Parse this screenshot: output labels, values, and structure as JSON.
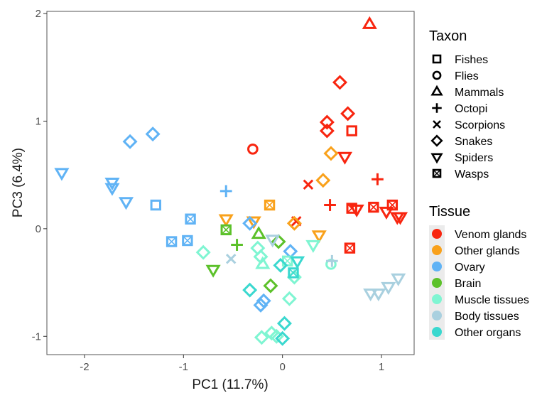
{
  "chart_data": {
    "type": "scatter",
    "xlabel": "PC1 (11.7%)",
    "ylabel": "PC3 (6.4%)",
    "xlim": [
      -2.38,
      1.33
    ],
    "ylim": [
      -1.17,
      2.02
    ],
    "xticks": [
      -2,
      -1,
      0,
      1
    ],
    "yticks": [
      -1,
      0,
      1,
      2
    ],
    "grid": false,
    "legend_placement": "right",
    "taxon_legend": {
      "title": "Taxon",
      "items": [
        {
          "name": "Fishes",
          "shape": "square"
        },
        {
          "name": "Flies",
          "shape": "circle"
        },
        {
          "name": "Mammals",
          "shape": "triangle"
        },
        {
          "name": "Octopi",
          "shape": "plus"
        },
        {
          "name": "Scorpions",
          "shape": "cross"
        },
        {
          "name": "Snakes",
          "shape": "diamond"
        },
        {
          "name": "Spiders",
          "shape": "triangle-down"
        },
        {
          "name": "Wasps",
          "shape": "square-box"
        }
      ]
    },
    "tissue_legend": {
      "title": "Tissue",
      "items": [
        {
          "name": "Venom glands",
          "color": "#f8250f"
        },
        {
          "name": "Other glands",
          "color": "#f9a11b"
        },
        {
          "name": "Ovary",
          "color": "#60b3f5"
        },
        {
          "name": "Brain",
          "color": "#5cc12a"
        },
        {
          "name": "Muscle tissues",
          "color": "#7ff5d2"
        },
        {
          "name": "Body tissues",
          "color": "#a9d0df"
        },
        {
          "name": "Other organs",
          "color": "#3ad8cf"
        }
      ]
    },
    "points": [
      {
        "x": 0.88,
        "y": 1.9,
        "taxon": "Mammals",
        "tissue": "Venom glands"
      },
      {
        "x": 0.58,
        "y": 1.36,
        "taxon": "Snakes",
        "tissue": "Venom glands"
      },
      {
        "x": 0.66,
        "y": 1.07,
        "taxon": "Snakes",
        "tissue": "Venom glands"
      },
      {
        "x": 0.45,
        "y": 0.99,
        "taxon": "Snakes",
        "tissue": "Venom glands"
      },
      {
        "x": 0.45,
        "y": 0.91,
        "taxon": "Snakes",
        "tissue": "Venom glands"
      },
      {
        "x": 0.7,
        "y": 0.91,
        "taxon": "Fishes",
        "tissue": "Venom glands"
      },
      {
        "x": -0.3,
        "y": 0.74,
        "taxon": "Flies",
        "tissue": "Venom glands"
      },
      {
        "x": 0.63,
        "y": 0.67,
        "taxon": "Spiders",
        "tissue": "Venom glands"
      },
      {
        "x": 0.96,
        "y": 0.46,
        "taxon": "Octopi",
        "tissue": "Venom glands"
      },
      {
        "x": 0.26,
        "y": 0.41,
        "taxon": "Scorpions",
        "tissue": "Venom glands"
      },
      {
        "x": 0.48,
        "y": 0.22,
        "taxon": "Octopi",
        "tissue": "Venom glands"
      },
      {
        "x": 0.7,
        "y": 0.19,
        "taxon": "Wasps",
        "tissue": "Venom glands"
      },
      {
        "x": 0.75,
        "y": 0.18,
        "taxon": "Spiders",
        "tissue": "Venom glands"
      },
      {
        "x": 0.92,
        "y": 0.2,
        "taxon": "Wasps",
        "tissue": "Venom glands"
      },
      {
        "x": 1.11,
        "y": 0.22,
        "taxon": "Wasps",
        "tissue": "Venom glands"
      },
      {
        "x": 1.05,
        "y": 0.16,
        "taxon": "Spiders",
        "tissue": "Venom glands"
      },
      {
        "x": 1.16,
        "y": 0.11,
        "taxon": "Spiders",
        "tissue": "Venom glands"
      },
      {
        "x": 1.19,
        "y": 0.11,
        "taxon": "Spiders",
        "tissue": "Venom glands"
      },
      {
        "x": 0.14,
        "y": 0.07,
        "taxon": "Scorpions",
        "tissue": "Venom glands"
      },
      {
        "x": 0.68,
        "y": -0.18,
        "taxon": "Wasps",
        "tissue": "Venom glands"
      },
      {
        "x": 0.49,
        "y": 0.7,
        "taxon": "Snakes",
        "tissue": "Other glands"
      },
      {
        "x": 0.41,
        "y": 0.45,
        "taxon": "Snakes",
        "tissue": "Other glands"
      },
      {
        "x": -0.13,
        "y": 0.22,
        "taxon": "Wasps",
        "tissue": "Other glands"
      },
      {
        "x": -0.57,
        "y": 0.09,
        "taxon": "Spiders",
        "tissue": "Other glands"
      },
      {
        "x": -0.29,
        "y": 0.07,
        "taxon": "Spiders",
        "tissue": "Other glands"
      },
      {
        "x": 0.12,
        "y": 0.05,
        "taxon": "Snakes",
        "tissue": "Other glands"
      },
      {
        "x": 0.37,
        "y": -0.06,
        "taxon": "Spiders",
        "tissue": "Other glands"
      },
      {
        "x": -1.31,
        "y": 0.88,
        "taxon": "Snakes",
        "tissue": "Ovary"
      },
      {
        "x": -1.54,
        "y": 0.81,
        "taxon": "Snakes",
        "tissue": "Ovary"
      },
      {
        "x": -1.72,
        "y": 0.43,
        "taxon": "Spiders",
        "tissue": "Ovary"
      },
      {
        "x": -1.72,
        "y": 0.38,
        "taxon": "Spiders",
        "tissue": "Ovary"
      },
      {
        "x": -1.58,
        "y": 0.25,
        "taxon": "Spiders",
        "tissue": "Ovary"
      },
      {
        "x": -1.28,
        "y": 0.22,
        "taxon": "Fishes",
        "tissue": "Ovary"
      },
      {
        "x": -0.57,
        "y": 0.35,
        "taxon": "Octopi",
        "tissue": "Ovary"
      },
      {
        "x": -0.93,
        "y": 0.09,
        "taxon": "Wasps",
        "tissue": "Ovary"
      },
      {
        "x": -1.12,
        "y": -0.12,
        "taxon": "Wasps",
        "tissue": "Ovary"
      },
      {
        "x": -0.96,
        "y": -0.11,
        "taxon": "Wasps",
        "tissue": "Ovary"
      },
      {
        "x": -0.33,
        "y": 0.05,
        "taxon": "Snakes",
        "tissue": "Ovary"
      },
      {
        "x": 0.08,
        "y": -0.21,
        "taxon": "Snakes",
        "tissue": "Ovary"
      },
      {
        "x": -0.19,
        "y": -0.67,
        "taxon": "Snakes",
        "tissue": "Ovary"
      },
      {
        "x": -0.22,
        "y": -0.71,
        "taxon": "Snakes",
        "tissue": "Ovary"
      },
      {
        "x": -0.04,
        "y": -0.12,
        "taxon": "Snakes",
        "tissue": "Brain"
      },
      {
        "x": -0.57,
        "y": -0.01,
        "taxon": "Wasps",
        "tissue": "Brain"
      },
      {
        "x": -0.24,
        "y": -0.05,
        "taxon": "Mammals",
        "tissue": "Brain"
      },
      {
        "x": -0.46,
        "y": -0.15,
        "taxon": "Octopi",
        "tissue": "Brain"
      },
      {
        "x": -0.7,
        "y": -0.38,
        "taxon": "Spiders",
        "tissue": "Brain"
      },
      {
        "x": -0.12,
        "y": -0.53,
        "taxon": "Snakes",
        "tissue": "Brain"
      },
      {
        "x": -0.8,
        "y": -0.22,
        "taxon": "Snakes",
        "tissue": "Muscle tissues"
      },
      {
        "x": -0.22,
        "y": -0.26,
        "taxon": "Snakes",
        "tissue": "Muscle tissues"
      },
      {
        "x": -0.2,
        "y": -0.33,
        "taxon": "Mammals",
        "tissue": "Muscle tissues"
      },
      {
        "x": -0.25,
        "y": -0.18,
        "taxon": "Snakes",
        "tissue": "Muscle tissues"
      },
      {
        "x": 0.05,
        "y": -0.3,
        "taxon": "Wasps",
        "tissue": "Muscle tissues"
      },
      {
        "x": 0.31,
        "y": -0.15,
        "taxon": "Spiders",
        "tissue": "Muscle tissues"
      },
      {
        "x": 0.12,
        "y": -0.45,
        "taxon": "Snakes",
        "tissue": "Muscle tissues"
      },
      {
        "x": 0.07,
        "y": -0.65,
        "taxon": "Snakes",
        "tissue": "Muscle tissues"
      },
      {
        "x": -0.11,
        "y": -0.97,
        "taxon": "Snakes",
        "tissue": "Muscle tissues"
      },
      {
        "x": -0.06,
        "y": -1.0,
        "taxon": "Snakes",
        "tissue": "Muscle tissues"
      },
      {
        "x": -0.21,
        "y": -1.01,
        "taxon": "Snakes",
        "tissue": "Muscle tissues"
      },
      {
        "x": 0.49,
        "y": -0.33,
        "taxon": "Flies",
        "tissue": "Muscle tissues"
      },
      {
        "x": -0.52,
        "y": -0.28,
        "taxon": "Scorpions",
        "tissue": "Body tissues"
      },
      {
        "x": -0.1,
        "y": -0.1,
        "taxon": "Spiders",
        "tissue": "Body tissues"
      },
      {
        "x": 0.5,
        "y": -0.3,
        "taxon": "Octopi",
        "tissue": "Body tissues"
      },
      {
        "x": 0.89,
        "y": -0.6,
        "taxon": "Spiders",
        "tissue": "Body tissues"
      },
      {
        "x": 0.97,
        "y": -0.6,
        "taxon": "Spiders",
        "tissue": "Body tissues"
      },
      {
        "x": 1.07,
        "y": -0.54,
        "taxon": "Spiders",
        "tissue": "Body tissues"
      },
      {
        "x": 1.17,
        "y": -0.46,
        "taxon": "Spiders",
        "tissue": "Body tissues"
      },
      {
        "x": -2.23,
        "y": 0.52,
        "taxon": "Spiders",
        "tissue": "Ovary"
      },
      {
        "x": -0.33,
        "y": -0.57,
        "taxon": "Snakes",
        "tissue": "Other organs"
      },
      {
        "x": 0.02,
        "y": -0.88,
        "taxon": "Snakes",
        "tissue": "Other organs"
      },
      {
        "x": -0.02,
        "y": -0.34,
        "taxon": "Snakes",
        "tissue": "Other organs"
      },
      {
        "x": 0.11,
        "y": -0.41,
        "taxon": "Wasps",
        "tissue": "Other organs"
      },
      {
        "x": 0.0,
        "y": -1.02,
        "taxon": "Snakes",
        "tissue": "Other organs"
      },
      {
        "x": 0.15,
        "y": -0.3,
        "taxon": "Spiders",
        "tissue": "Other organs"
      }
    ]
  }
}
